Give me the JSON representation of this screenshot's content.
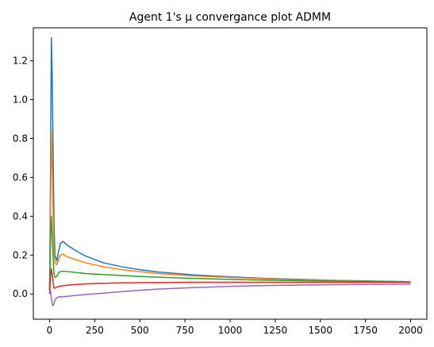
{
  "chart_data": {
    "type": "line",
    "title": "Agent 1's μ convergance plot ADMM",
    "xlabel": "",
    "ylabel": "",
    "xlim": [
      -90,
      2090
    ],
    "ylim": [
      -0.13,
      1.37
    ],
    "xticks": [
      0,
      250,
      500,
      750,
      1000,
      1250,
      1500,
      1750,
      2000
    ],
    "yticks": [
      0.0,
      0.2,
      0.4,
      0.6,
      0.8,
      1.0,
      1.2
    ],
    "xtick_labels": [
      "0",
      "250",
      "500",
      "750",
      "1000",
      "1250",
      "1500",
      "1750",
      "2000"
    ],
    "ytick_labels": [
      "0.0",
      "0.2",
      "0.4",
      "0.6",
      "0.8",
      "1.0",
      "1.2"
    ],
    "grid": false,
    "series": [
      {
        "color": "#1f77b4",
        "x": [
          0,
          5,
          10,
          15,
          20,
          25,
          30,
          40,
          50,
          60,
          75,
          100,
          150,
          200,
          300,
          400,
          500,
          600,
          800,
          1000,
          1200,
          1400,
          1600,
          1800,
          2000
        ],
        "y": [
          0.02,
          0.6,
          1.32,
          1.1,
          0.7,
          0.35,
          0.2,
          0.17,
          0.22,
          0.26,
          0.27,
          0.25,
          0.22,
          0.195,
          0.16,
          0.14,
          0.125,
          0.113,
          0.098,
          0.088,
          0.08,
          0.075,
          0.07,
          0.066,
          0.063
        ]
      },
      {
        "color": "#ff7f0e",
        "x": [
          0,
          5,
          10,
          15,
          20,
          25,
          30,
          40,
          50,
          60,
          75,
          100,
          150,
          200,
          300,
          400,
          500,
          600,
          800,
          1000,
          1200,
          1400,
          1600,
          1800,
          2000
        ],
        "y": [
          0.02,
          0.4,
          0.84,
          0.65,
          0.4,
          0.22,
          0.16,
          0.15,
          0.18,
          0.2,
          0.205,
          0.19,
          0.175,
          0.16,
          0.14,
          0.125,
          0.115,
          0.105,
          0.093,
          0.085,
          0.078,
          0.073,
          0.069,
          0.065,
          0.062
        ]
      },
      {
        "color": "#2ca02c",
        "x": [
          0,
          5,
          10,
          15,
          20,
          25,
          30,
          40,
          50,
          60,
          75,
          100,
          150,
          200,
          300,
          400,
          500,
          600,
          800,
          1000,
          1200,
          1400,
          1600,
          1800,
          2000
        ],
        "y": [
          0.02,
          0.25,
          0.4,
          0.3,
          0.18,
          0.1,
          0.085,
          0.09,
          0.11,
          0.115,
          0.117,
          0.115,
          0.11,
          0.105,
          0.1,
          0.095,
          0.09,
          0.086,
          0.08,
          0.075,
          0.071,
          0.068,
          0.066,
          0.064,
          0.062
        ]
      },
      {
        "color": "#d62728",
        "x": [
          0,
          5,
          10,
          15,
          20,
          25,
          30,
          40,
          50,
          60,
          75,
          100,
          150,
          200,
          300,
          400,
          500,
          600,
          800,
          1000,
          1200,
          1400,
          1600,
          1800,
          2000
        ],
        "y": [
          0.0,
          0.08,
          0.13,
          0.1,
          0.06,
          0.03,
          0.03,
          0.035,
          0.038,
          0.04,
          0.042,
          0.045,
          0.049,
          0.052,
          0.055,
          0.057,
          0.058,
          0.059,
          0.06,
          0.06,
          0.06,
          0.06,
          0.06,
          0.06,
          0.06
        ]
      },
      {
        "color": "#9467bd",
        "x": [
          0,
          5,
          10,
          15,
          20,
          25,
          30,
          40,
          50,
          60,
          75,
          100,
          150,
          200,
          300,
          400,
          500,
          600,
          800,
          1000,
          1200,
          1400,
          1600,
          1800,
          2000
        ],
        "y": [
          0.0,
          0.02,
          -0.02,
          -0.055,
          -0.06,
          -0.045,
          -0.03,
          -0.02,
          -0.015,
          -0.015,
          -0.014,
          -0.012,
          -0.007,
          -0.003,
          0.004,
          0.012,
          0.019,
          0.025,
          0.033,
          0.039,
          0.043,
          0.046,
          0.048,
          0.05,
          0.051
        ]
      }
    ]
  }
}
